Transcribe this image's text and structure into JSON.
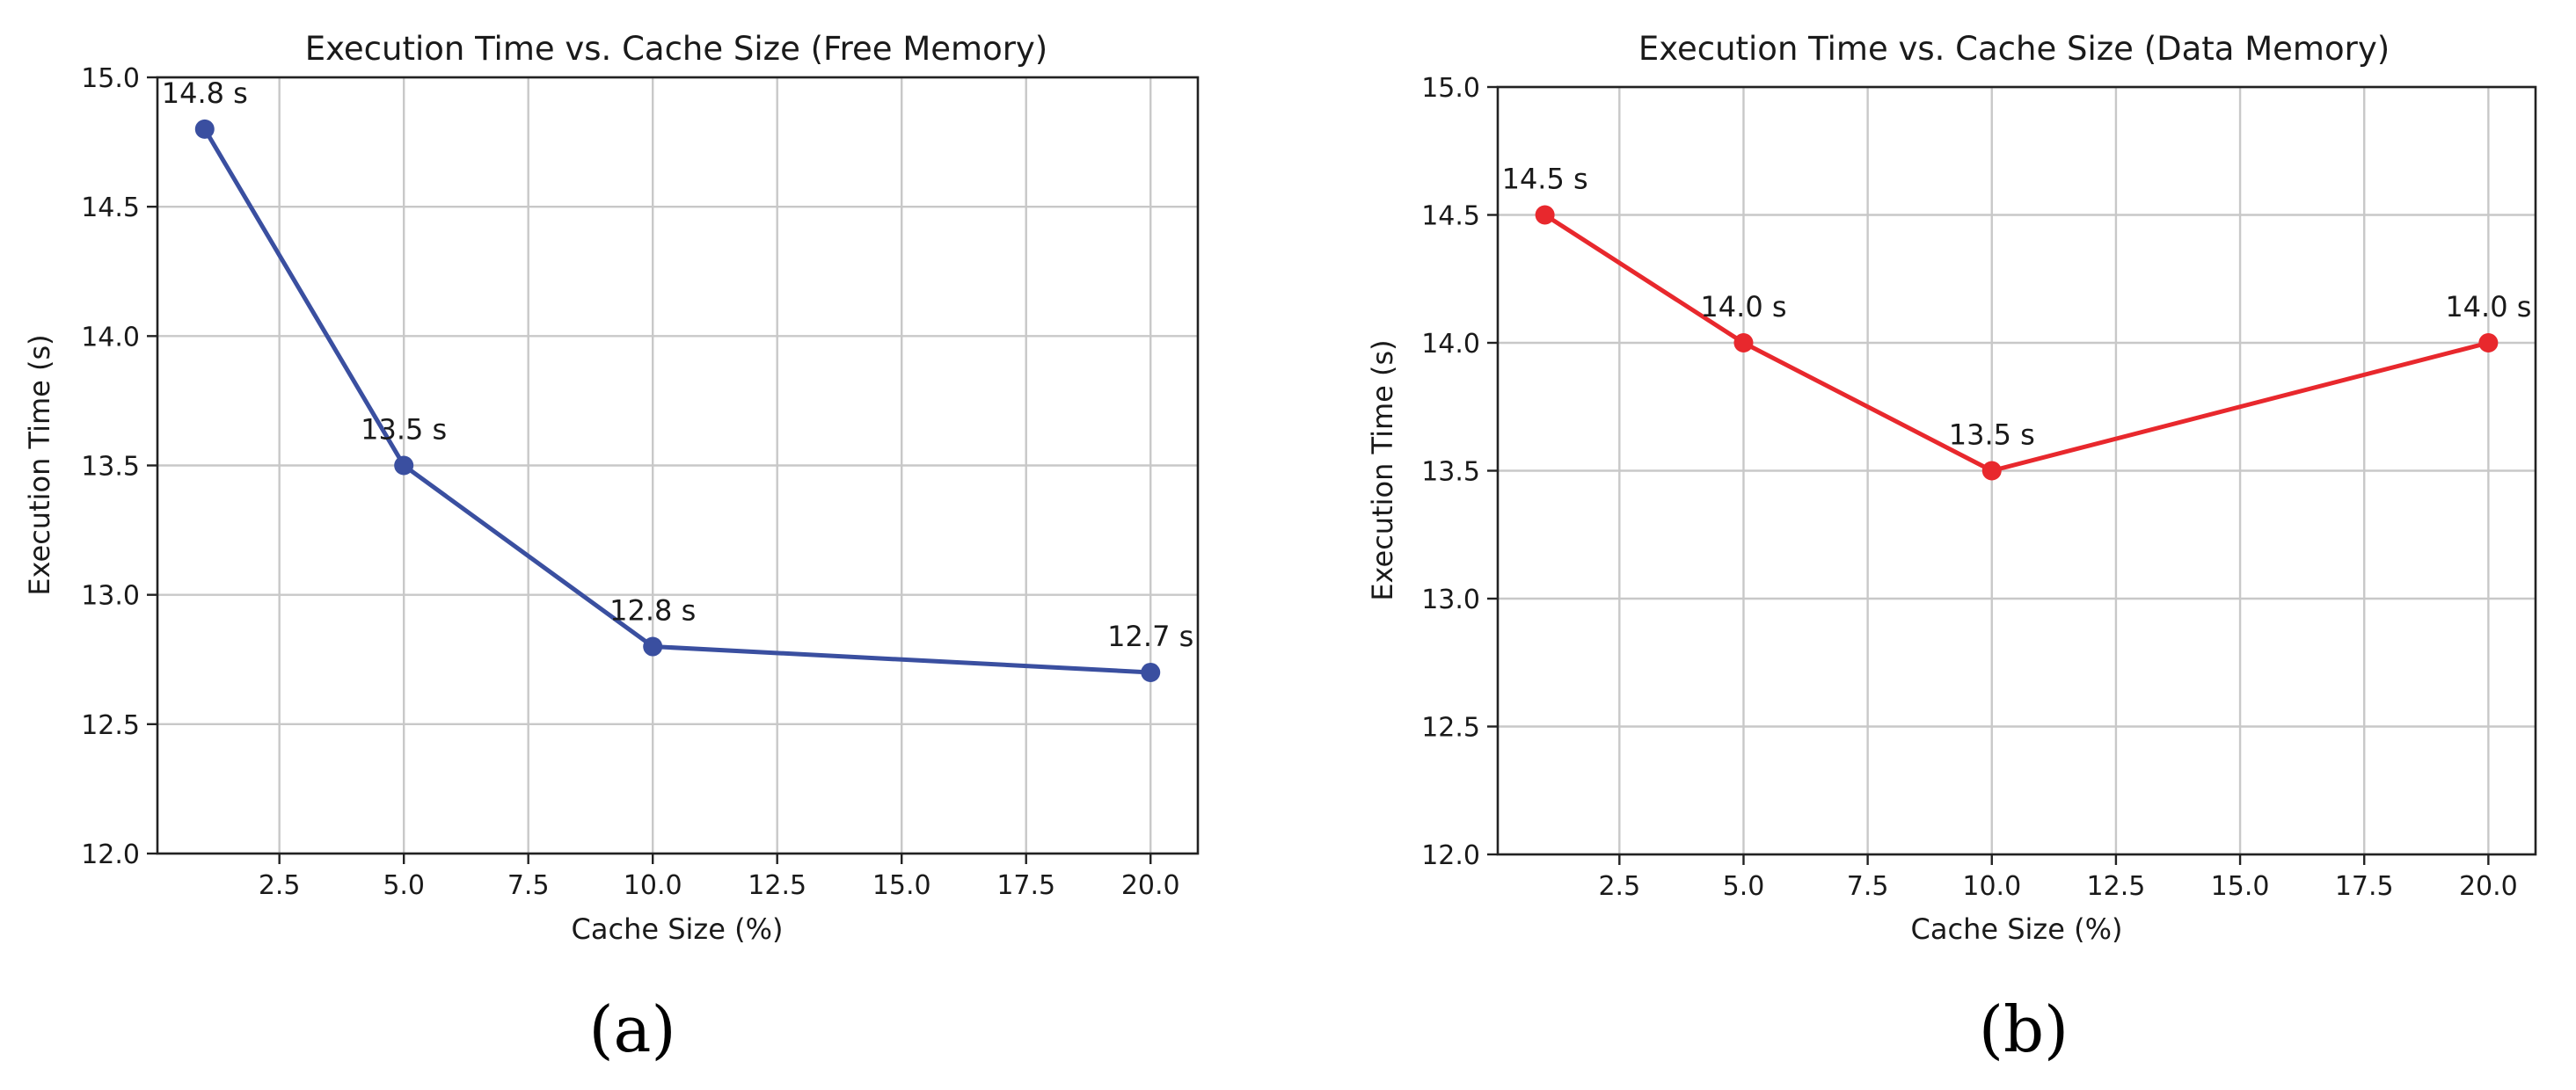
{
  "chart_data": [
    {
      "type": "line",
      "title": "Execution Time vs. Cache Size (Free Memory)",
      "xlabel": "Cache Size (%)",
      "ylabel": "Execution Time (s)",
      "xlim": [
        0.05,
        20.95
      ],
      "ylim": [
        12.0,
        15.0
      ],
      "xticks": [
        "2.5",
        "5.0",
        "7.5",
        "10.0",
        "12.5",
        "15.0",
        "17.5",
        "20.0"
      ],
      "xtick_values": [
        2.5,
        5.0,
        7.5,
        10.0,
        12.5,
        15.0,
        17.5,
        20.0
      ],
      "yticks": [
        "12.0",
        "12.5",
        "13.0",
        "13.5",
        "14.0",
        "14.5",
        "15.0"
      ],
      "ytick_values": [
        12.0,
        12.5,
        13.0,
        13.5,
        14.0,
        14.5,
        15.0
      ],
      "grid": true,
      "panel_label": "(a)",
      "series": [
        {
          "color": "#3a4fa0",
          "x": [
            1,
            5,
            10,
            20
          ],
          "values": [
            14.8,
            13.5,
            12.8,
            12.7
          ],
          "labels": [
            "14.8 s",
            "13.5 s",
            "12.8 s",
            "12.7 s"
          ]
        }
      ]
    },
    {
      "type": "line",
      "title": "Execution Time vs. Cache Size (Data Memory)",
      "xlabel": "Cache Size (%)",
      "ylabel": "Execution Time (s)",
      "xlim": [
        0.05,
        20.95
      ],
      "ylim": [
        12.0,
        15.0
      ],
      "xticks": [
        "2.5",
        "5.0",
        "7.5",
        "10.0",
        "12.5",
        "15.0",
        "17.5",
        "20.0"
      ],
      "xtick_values": [
        2.5,
        5.0,
        7.5,
        10.0,
        12.5,
        15.0,
        17.5,
        20.0
      ],
      "yticks": [
        "12.0",
        "12.5",
        "13.0",
        "13.5",
        "14.0",
        "14.5",
        "15.0"
      ],
      "ytick_values": [
        12.0,
        12.5,
        13.0,
        13.5,
        14.0,
        14.5,
        15.0
      ],
      "grid": true,
      "panel_label": "(b)",
      "series": [
        {
          "color": "#e8282d",
          "x": [
            1,
            5,
            10,
            20
          ],
          "values": [
            14.5,
            14.0,
            13.5,
            14.0
          ],
          "labels": [
            "14.5 s",
            "14.0 s",
            "13.5 s",
            "14.0 s"
          ]
        }
      ]
    }
  ]
}
